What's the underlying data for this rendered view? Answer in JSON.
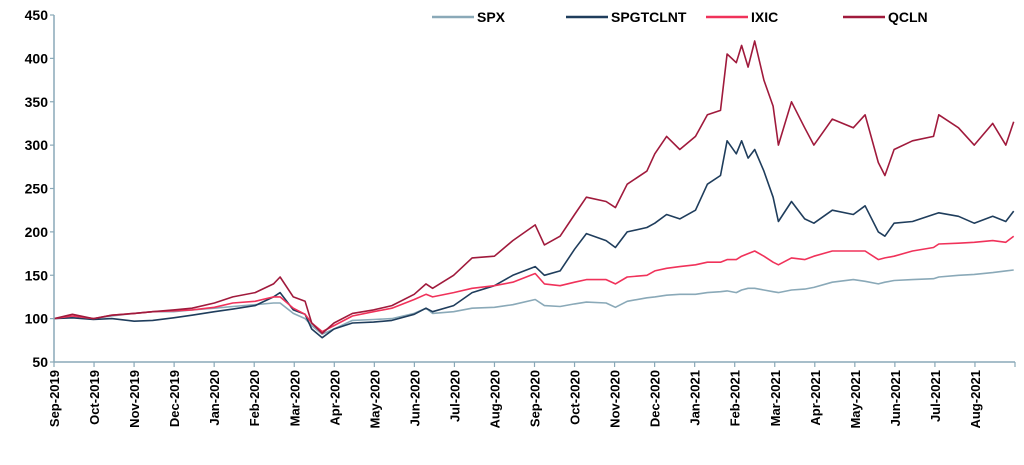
{
  "chart_data": {
    "type": "line",
    "title": "",
    "xlabel": "",
    "ylabel": "",
    "ylim": [
      50,
      450
    ],
    "yticks": [
      50,
      100,
      150,
      200,
      250,
      300,
      350,
      400,
      450
    ],
    "xlim": [
      "2019-09-01",
      "2021-09-01"
    ],
    "xtick_labels": [
      "Sep-2019",
      "Oct-2019",
      "Nov-2019",
      "Dec-2019",
      "Jan-2020",
      "Feb-2020",
      "Mar-2020",
      "Apr-2020",
      "May-2020",
      "Jun-2020",
      "Jul-2020",
      "Aug-2020",
      "Sep-2020",
      "Oct-2020",
      "Nov-2020",
      "Dec-2020",
      "Jan-2021",
      "Feb-2021",
      "Mar-2021",
      "Apr-2021",
      "May-2021",
      "Jun-2021",
      "Jul-2021",
      "Aug-2021"
    ],
    "grid": false,
    "legend_position": "top-right",
    "axis_color": "#8aa9b8",
    "x": [
      "2019-09-01",
      "2019-09-15",
      "2019-10-01",
      "2019-10-15",
      "2019-11-01",
      "2019-11-15",
      "2019-12-01",
      "2019-12-15",
      "2020-01-01",
      "2020-01-15",
      "2020-02-01",
      "2020-02-15",
      "2020-02-20",
      "2020-03-01",
      "2020-03-10",
      "2020-03-15",
      "2020-03-23",
      "2020-04-01",
      "2020-04-15",
      "2020-05-01",
      "2020-05-15",
      "2020-06-01",
      "2020-06-10",
      "2020-06-15",
      "2020-07-01",
      "2020-07-15",
      "2020-08-01",
      "2020-08-15",
      "2020-09-01",
      "2020-09-08",
      "2020-09-20",
      "2020-10-01",
      "2020-10-10",
      "2020-10-25",
      "2020-11-01",
      "2020-11-10",
      "2020-11-25",
      "2020-12-01",
      "2020-12-10",
      "2020-12-20",
      "2021-01-01",
      "2021-01-10",
      "2021-01-20",
      "2021-01-25",
      "2021-02-01",
      "2021-02-05",
      "2021-02-10",
      "2021-02-15",
      "2021-02-22",
      "2021-03-01",
      "2021-03-05",
      "2021-03-15",
      "2021-03-25",
      "2021-04-01",
      "2021-04-15",
      "2021-05-01",
      "2021-05-10",
      "2021-05-20",
      "2021-05-25",
      "2021-06-01",
      "2021-06-15",
      "2021-07-01",
      "2021-07-05",
      "2021-07-20",
      "2021-08-01",
      "2021-08-15",
      "2021-08-25",
      "2021-08-31"
    ],
    "series": [
      {
        "name": "SPX",
        "color": "#8aa9b8",
        "values": [
          100,
          102,
          100,
          103,
          106,
          108,
          108,
          110,
          112,
          114,
          116,
          118,
          118,
          106,
          100,
          92,
          82,
          88,
          98,
          99,
          100,
          106,
          112,
          106,
          108,
          112,
          113,
          116,
          122,
          115,
          114,
          117,
          119,
          118,
          113,
          120,
          124,
          125,
          127,
          128,
          128,
          130,
          131,
          132,
          130,
          133,
          135,
          135,
          133,
          131,
          130,
          133,
          134,
          136,
          142,
          145,
          143,
          140,
          142,
          144,
          145,
          146,
          148,
          150,
          151,
          153,
          155,
          156
        ]
      },
      {
        "name": "SPGTCLNT",
        "color": "#1f3d5c",
        "values": [
          100,
          101,
          99,
          100,
          97,
          98,
          101,
          104,
          108,
          111,
          115,
          125,
          130,
          110,
          105,
          88,
          78,
          88,
          95,
          96,
          98,
          105,
          112,
          108,
          115,
          130,
          138,
          150,
          160,
          150,
          155,
          180,
          198,
          190,
          182,
          200,
          205,
          210,
          220,
          215,
          225,
          255,
          265,
          305,
          290,
          305,
          285,
          295,
          270,
          240,
          212,
          235,
          215,
          210,
          225,
          220,
          230,
          200,
          195,
          210,
          212,
          220,
          222,
          218,
          210,
          218,
          212,
          224
        ]
      },
      {
        "name": "IXIC",
        "color": "#f0325a",
        "values": [
          100,
          103,
          100,
          104,
          106,
          108,
          109,
          110,
          113,
          118,
          120,
          125,
          125,
          112,
          105,
          95,
          85,
          92,
          103,
          108,
          112,
          122,
          128,
          125,
          130,
          135,
          138,
          142,
          152,
          140,
          138,
          142,
          145,
          145,
          140,
          148,
          150,
          155,
          158,
          160,
          162,
          165,
          165,
          168,
          168,
          172,
          175,
          178,
          172,
          165,
          162,
          170,
          168,
          172,
          178,
          178,
          178,
          168,
          170,
          172,
          178,
          182,
          186,
          187,
          188,
          190,
          188,
          195
        ]
      },
      {
        "name": "QCLN",
        "color": "#a01a3c",
        "values": [
          100,
          105,
          100,
          104,
          106,
          108,
          110,
          112,
          118,
          125,
          130,
          140,
          148,
          125,
          120,
          95,
          83,
          95,
          106,
          110,
          115,
          128,
          140,
          135,
          150,
          170,
          172,
          190,
          208,
          185,
          195,
          220,
          240,
          235,
          228,
          255,
          270,
          290,
          310,
          295,
          310,
          335,
          340,
          405,
          395,
          415,
          390,
          420,
          375,
          345,
          300,
          350,
          320,
          300,
          330,
          320,
          335,
          280,
          265,
          295,
          305,
          310,
          335,
          320,
          300,
          325,
          300,
          327
        ]
      }
    ]
  }
}
